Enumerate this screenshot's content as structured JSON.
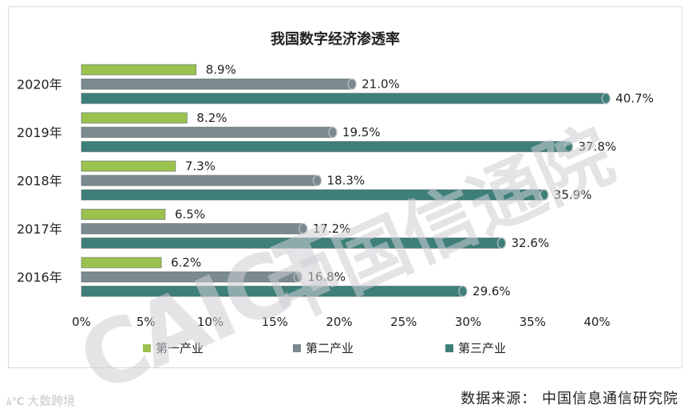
{
  "chart_data": {
    "type": "bar",
    "orientation": "horizontal",
    "title": "我国数字经济渗透率",
    "categories": [
      "2020年",
      "2019年",
      "2018年",
      "2017年",
      "2016年"
    ],
    "series": [
      {
        "name": "第一产业",
        "color": "#9bc24f",
        "values": [
          8.9,
          8.2,
          7.3,
          6.5,
          6.2
        ],
        "labels": [
          "8.9%",
          "8.2%",
          "7.3%",
          "6.5%",
          "6.2%"
        ]
      },
      {
        "name": "第二产业",
        "color": "#7b8a8f",
        "values": [
          21.0,
          19.5,
          18.3,
          17.2,
          16.8
        ],
        "labels": [
          "21.0%",
          "19.5%",
          "18.3%",
          "17.2%",
          "16.8%"
        ]
      },
      {
        "name": "第三产业",
        "color": "#3e7f79",
        "values": [
          40.7,
          37.8,
          35.9,
          32.6,
          29.6
        ],
        "labels": [
          "40.7%",
          "37.8%",
          "35.9%",
          "32.6%",
          "29.6%"
        ]
      }
    ],
    "xlim": [
      0,
      40
    ],
    "xticks": [
      "0%",
      "5%",
      "10%",
      "15%",
      "20%",
      "25%",
      "30%",
      "35%",
      "40%"
    ],
    "legend_position": "bottom",
    "grid": false
  },
  "watermark": {
    "en": "CAICT",
    "cn": "中国信通院"
  },
  "source": "数据来源： 中国信息通信研究院",
  "brand": {
    "logo": "ﾑ℃",
    "text": "大数跨境"
  }
}
